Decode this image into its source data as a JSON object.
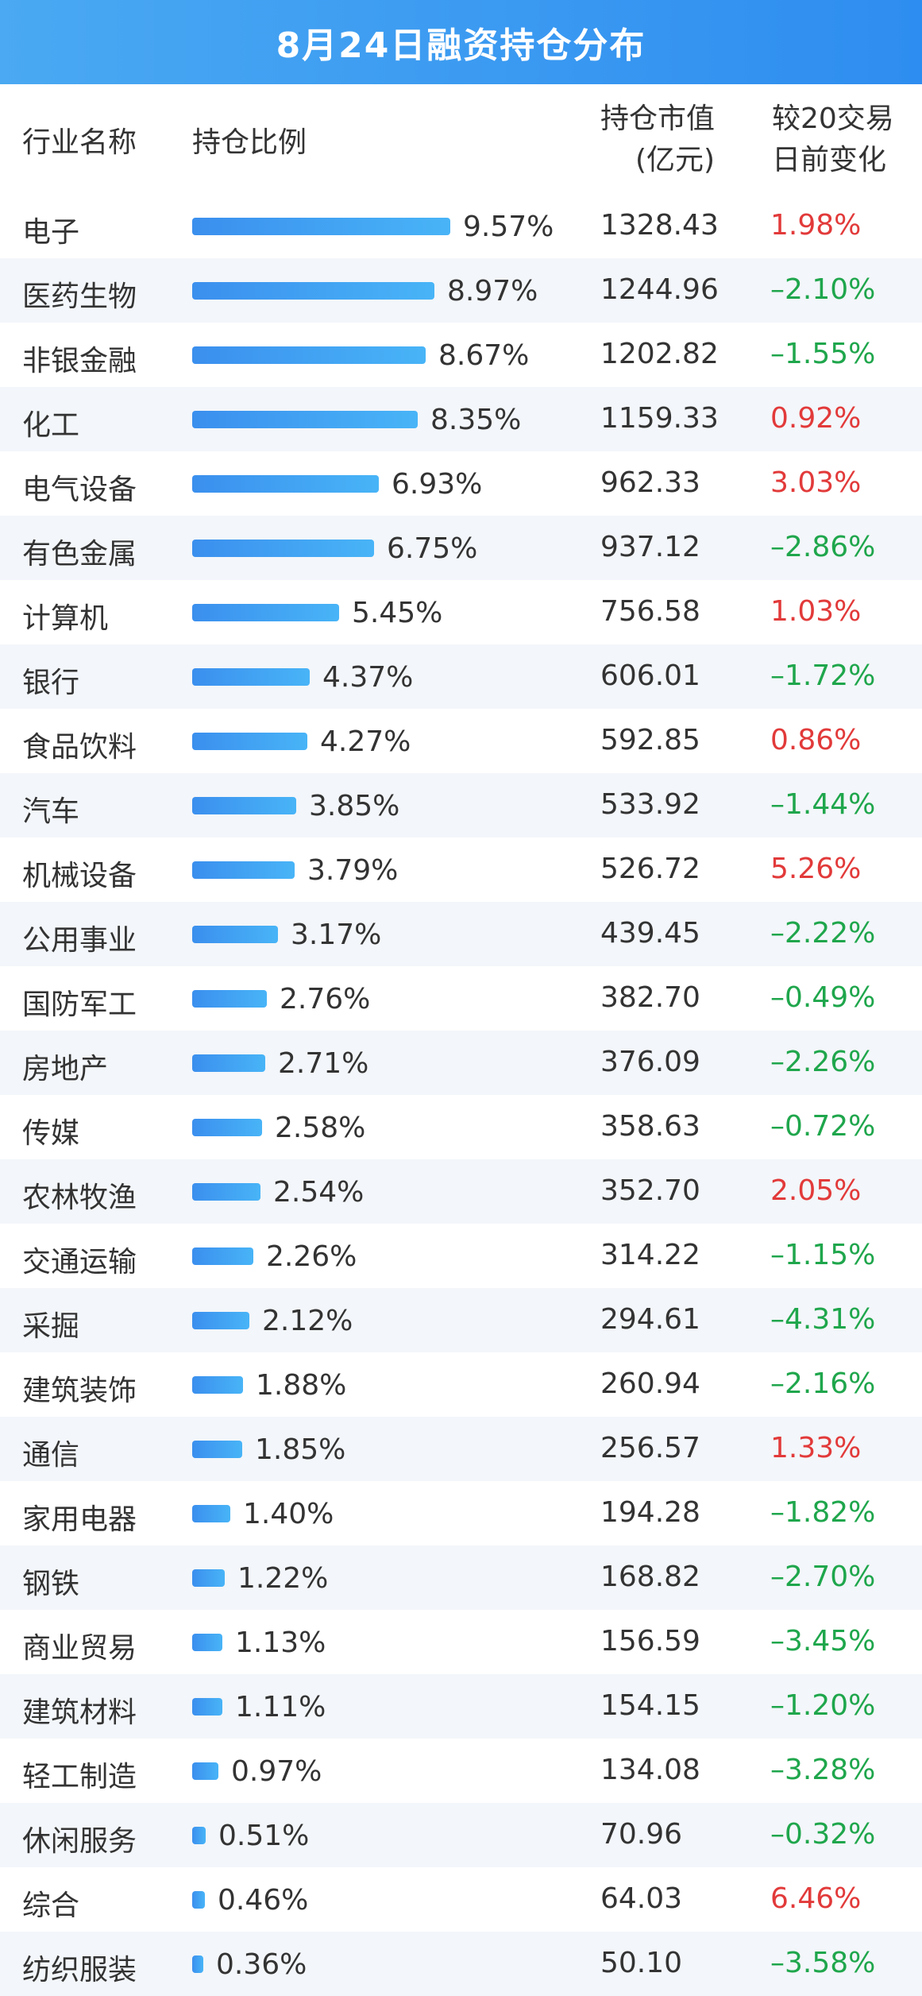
{
  "title": "8月24日融资持仓分布",
  "headers": {
    "name": "行业名称",
    "ratio": "持仓比例",
    "market_value_line1": "持仓市值",
    "market_value_line2": "(亿元)",
    "change_line1": "较20交易",
    "change_line2": "日前变化"
  },
  "colors": {
    "title_bg": "#3a9bf1",
    "bar": "#3b8fee",
    "positive": "#e23a3a",
    "negative": "#1fa64c",
    "alt_row_bg": "#f3f6fa"
  },
  "chart_data": {
    "type": "table",
    "title": "8月24日融资持仓分布",
    "columns": [
      "行业名称",
      "持仓比例",
      "持仓市值(亿元)",
      "较20交易日前变化"
    ],
    "rows": [
      {
        "name": "电子",
        "ratio": 9.57,
        "ratio_label": "9.57%",
        "mv": "1328.43",
        "chg": 1.98,
        "chg_label": "1.98%"
      },
      {
        "name": "医药生物",
        "ratio": 8.97,
        "ratio_label": "8.97%",
        "mv": "1244.96",
        "chg": -2.1,
        "chg_label": "–2.10%"
      },
      {
        "name": "非银金融",
        "ratio": 8.67,
        "ratio_label": "8.67%",
        "mv": "1202.82",
        "chg": -1.55,
        "chg_label": "–1.55%"
      },
      {
        "name": "化工",
        "ratio": 8.35,
        "ratio_label": "8.35%",
        "mv": "1159.33",
        "chg": 0.92,
        "chg_label": "0.92%"
      },
      {
        "name": "电气设备",
        "ratio": 6.93,
        "ratio_label": "6.93%",
        "mv": "962.33",
        "chg": 3.03,
        "chg_label": "3.03%"
      },
      {
        "name": "有色金属",
        "ratio": 6.75,
        "ratio_label": "6.75%",
        "mv": "937.12",
        "chg": -2.86,
        "chg_label": "–2.86%"
      },
      {
        "name": "计算机",
        "ratio": 5.45,
        "ratio_label": "5.45%",
        "mv": "756.58",
        "chg": 1.03,
        "chg_label": "1.03%"
      },
      {
        "name": "银行",
        "ratio": 4.37,
        "ratio_label": "4.37%",
        "mv": "606.01",
        "chg": -1.72,
        "chg_label": "–1.72%"
      },
      {
        "name": "食品饮料",
        "ratio": 4.27,
        "ratio_label": "4.27%",
        "mv": "592.85",
        "chg": 0.86,
        "chg_label": "0.86%"
      },
      {
        "name": "汽车",
        "ratio": 3.85,
        "ratio_label": "3.85%",
        "mv": "533.92",
        "chg": -1.44,
        "chg_label": "–1.44%"
      },
      {
        "name": "机械设备",
        "ratio": 3.79,
        "ratio_label": "3.79%",
        "mv": "526.72",
        "chg": 5.26,
        "chg_label": "5.26%"
      },
      {
        "name": "公用事业",
        "ratio": 3.17,
        "ratio_label": "3.17%",
        "mv": "439.45",
        "chg": -2.22,
        "chg_label": "–2.22%"
      },
      {
        "name": "国防军工",
        "ratio": 2.76,
        "ratio_label": "2.76%",
        "mv": "382.70",
        "chg": -0.49,
        "chg_label": "–0.49%"
      },
      {
        "name": "房地产",
        "ratio": 2.71,
        "ratio_label": "2.71%",
        "mv": "376.09",
        "chg": -2.26,
        "chg_label": "–2.26%"
      },
      {
        "name": "传媒",
        "ratio": 2.58,
        "ratio_label": "2.58%",
        "mv": "358.63",
        "chg": -0.72,
        "chg_label": "–0.72%"
      },
      {
        "name": "农林牧渔",
        "ratio": 2.54,
        "ratio_label": "2.54%",
        "mv": "352.70",
        "chg": 2.05,
        "chg_label": "2.05%"
      },
      {
        "name": "交通运输",
        "ratio": 2.26,
        "ratio_label": "2.26%",
        "mv": "314.22",
        "chg": -1.15,
        "chg_label": "–1.15%"
      },
      {
        "name": "采掘",
        "ratio": 2.12,
        "ratio_label": "2.12%",
        "mv": "294.61",
        "chg": -4.31,
        "chg_label": "–4.31%"
      },
      {
        "name": "建筑装饰",
        "ratio": 1.88,
        "ratio_label": "1.88%",
        "mv": "260.94",
        "chg": -2.16,
        "chg_label": "–2.16%"
      },
      {
        "name": "通信",
        "ratio": 1.85,
        "ratio_label": "1.85%",
        "mv": "256.57",
        "chg": 1.33,
        "chg_label": "1.33%"
      },
      {
        "name": "家用电器",
        "ratio": 1.4,
        "ratio_label": "1.40%",
        "mv": "194.28",
        "chg": -1.82,
        "chg_label": "–1.82%"
      },
      {
        "name": "钢铁",
        "ratio": 1.22,
        "ratio_label": "1.22%",
        "mv": "168.82",
        "chg": -2.7,
        "chg_label": "–2.70%"
      },
      {
        "name": "商业贸易",
        "ratio": 1.13,
        "ratio_label": "1.13%",
        "mv": "156.59",
        "chg": -3.45,
        "chg_label": "–3.45%"
      },
      {
        "name": "建筑材料",
        "ratio": 1.11,
        "ratio_label": "1.11%",
        "mv": "154.15",
        "chg": -1.2,
        "chg_label": "–1.20%"
      },
      {
        "name": "轻工制造",
        "ratio": 0.97,
        "ratio_label": "0.97%",
        "mv": "134.08",
        "chg": -3.28,
        "chg_label": "–3.28%"
      },
      {
        "name": "休闲服务",
        "ratio": 0.51,
        "ratio_label": "0.51%",
        "mv": "70.96",
        "chg": -0.32,
        "chg_label": "–0.32%"
      },
      {
        "name": "综合",
        "ratio": 0.46,
        "ratio_label": "0.46%",
        "mv": "64.03",
        "chg": 6.46,
        "chg_label": "6.46%"
      },
      {
        "name": "纺织服装",
        "ratio": 0.36,
        "ratio_label": "0.36%",
        "mv": "50.10",
        "chg": -3.58,
        "chg_label": "–3.58%"
      }
    ]
  }
}
